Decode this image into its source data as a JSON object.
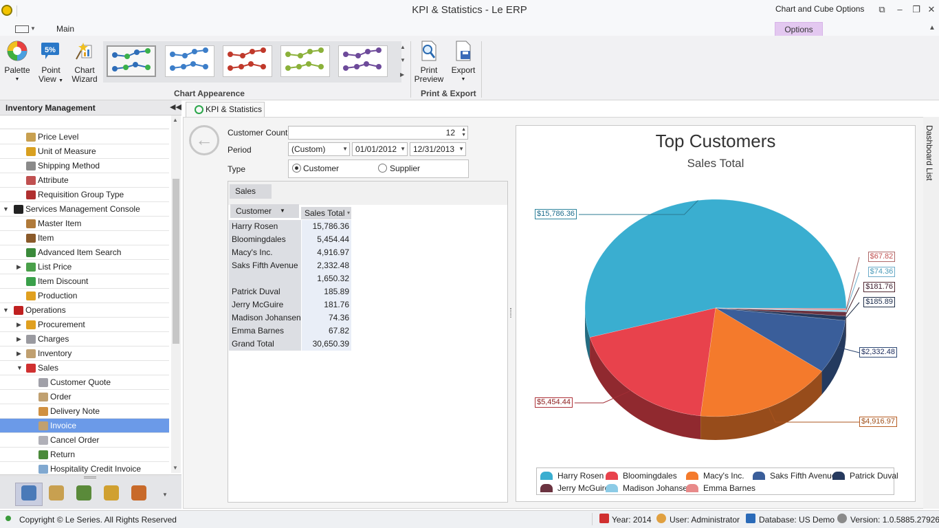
{
  "window": {
    "title": "KPI & Statistics - Le ERP",
    "context_title": "Chart and Cube Options"
  },
  "ribbon": {
    "tabs": [
      "Main",
      "Options"
    ],
    "buttons": {
      "palette": "Palette",
      "point_view_1": "Point",
      "point_view_2": "View",
      "chart_wizard_1": "Chart",
      "chart_wizard_2": "Wizard",
      "print_preview_1": "Print",
      "print_preview_2": "Preview",
      "export": "Export"
    },
    "groups": {
      "appearance": "Chart Appearence",
      "print_export": "Print & Export"
    },
    "gallery_colors": [
      "#2e6db8",
      "#3c7ec9",
      "#c0392b",
      "#8bb13a",
      "#6d4a9a"
    ]
  },
  "left_panel": {
    "title": "Inventory Management",
    "items": [
      {
        "label": "Price Level",
        "level": 2,
        "icon": "price-level-icon",
        "color": "#c8a050"
      },
      {
        "label": "Unit of Measure",
        "level": 2,
        "icon": "unit-measure-icon",
        "color": "#d9a020"
      },
      {
        "label": "Shipping Method",
        "level": 2,
        "icon": "shipping-icon",
        "color": "#8a8a8a"
      },
      {
        "label": "Attribute",
        "level": 2,
        "icon": "attribute-icon",
        "color": "#c05050"
      },
      {
        "label": "Requisition Group Type",
        "level": 2,
        "icon": "requisition-icon",
        "color": "#b03030"
      },
      {
        "label": "Services Management Console",
        "level": 1,
        "icon": "console-icon",
        "color": "#222222",
        "arrow": "expanded"
      },
      {
        "label": "Master Item",
        "level": 2,
        "icon": "master-item-icon",
        "color": "#b07a3a"
      },
      {
        "label": "Item",
        "level": 2,
        "icon": "item-icon",
        "color": "#8a5a2a"
      },
      {
        "label": "Advanced Item Search",
        "level": 2,
        "icon": "item-search-icon",
        "color": "#3a8a3a"
      },
      {
        "label": "List Price",
        "level": 2,
        "icon": "list-price-icon",
        "color": "#4aa04a",
        "arrow": "collapsed"
      },
      {
        "label": "Item Discount",
        "level": 2,
        "icon": "discount-icon",
        "color": "#3aa04a"
      },
      {
        "label": "Production",
        "level": 2,
        "icon": "production-icon",
        "color": "#e0a020"
      },
      {
        "label": "Operations",
        "level": 1,
        "icon": "operations-icon",
        "color": "#c02020",
        "arrow": "expanded"
      },
      {
        "label": "Procurement",
        "level": 2,
        "icon": "procurement-icon",
        "color": "#e0a020",
        "arrow": "collapsed"
      },
      {
        "label": "Charges",
        "level": 2,
        "icon": "charges-icon",
        "color": "#9a9aa0",
        "arrow": "collapsed"
      },
      {
        "label": "Inventory",
        "level": 2,
        "icon": "inventory-icon",
        "color": "#c0a070",
        "arrow": "collapsed"
      },
      {
        "label": "Sales",
        "level": 2,
        "icon": "sales-icon",
        "color": "#d03030",
        "arrow": "expanded"
      },
      {
        "label": "Customer Quote",
        "level": 3,
        "icon": "quote-icon",
        "color": "#a0a0a8"
      },
      {
        "label": "Order",
        "level": 3,
        "icon": "order-icon",
        "color": "#c0a070"
      },
      {
        "label": "Delivery Note",
        "level": 3,
        "icon": "delivery-icon",
        "color": "#d09040"
      },
      {
        "label": "Invoice",
        "level": 3,
        "icon": "invoice-icon",
        "color": "#c0a070",
        "selected": true
      },
      {
        "label": "Cancel Order",
        "level": 3,
        "icon": "cancel-order-icon",
        "color": "#b0b0b8"
      },
      {
        "label": "Return",
        "level": 3,
        "icon": "return-icon",
        "color": "#4a8a3a"
      },
      {
        "label": "Hospitality Credit Invoice",
        "level": 3,
        "icon": "credit-invoice-icon",
        "color": "#80a8d0"
      }
    ],
    "bottom_icons": [
      "inventory-module-icon",
      "finance-module-icon",
      "money-module-icon",
      "people-module-icon",
      "settings-module-icon"
    ]
  },
  "document_tab": "KPI & Statistics",
  "filters": {
    "customer_count_label": "Customer Count",
    "customer_count": "12",
    "period_label": "Period",
    "period_value": "(Custom)",
    "date_from": "01/01/2012",
    "date_to": "12/31/2013",
    "type_label": "Type",
    "type_customer": "Customer",
    "type_supplier": "Supplier"
  },
  "pivot": {
    "data_field": "Sales",
    "row_field": "Customer",
    "col_header": "Sales Total",
    "rows": [
      {
        "name": "Harry Rosen",
        "value": "15,786.36"
      },
      {
        "name": "Bloomingdales",
        "value": "5,454.44"
      },
      {
        "name": "Macy's Inc.",
        "value": "4,916.97"
      },
      {
        "name": "Saks Fifth Avenue",
        "value": "2,332.48"
      },
      {
        "name": "",
        "value": "1,650.32"
      },
      {
        "name": "Patrick Duval",
        "value": "185.89"
      },
      {
        "name": "Jerry McGuire",
        "value": "181.76"
      },
      {
        "name": "Madison Johansen",
        "value": "74.36"
      },
      {
        "name": "Emma Barnes",
        "value": "67.82"
      },
      {
        "name": "Grand Total",
        "value": "30,650.39"
      }
    ]
  },
  "chart_data": {
    "type": "pie",
    "title": "Top Customers",
    "subtitle": "Sales Total",
    "labels": [
      "Harry Rosen",
      "Bloomingdales",
      "Macy's Inc.",
      "Saks Fifth Avenue",
      "Patrick Duval",
      "Jerry McGuire",
      "Madison Johansen",
      "Emma Barnes"
    ],
    "values": [
      15786.36,
      5454.44,
      4916.97,
      2332.48,
      185.89,
      181.76,
      74.36,
      67.82
    ],
    "data_labels": [
      "$15,786.36",
      "$5,454.44",
      "$4,916.97",
      "$2,332.48",
      "$185.89",
      "$181.76",
      "$74.36",
      "$67.82"
    ],
    "colors": [
      "#3aaed0",
      "#e8424c",
      "#f47a2c",
      "#3a5e9a",
      "#263a5e",
      "#6b3340",
      "#8ccbe6",
      "#e88a8a"
    ],
    "legend_position": "bottom"
  },
  "side_tab": "Dashboard List",
  "status": {
    "copyright": "Copyright © Le Series. All Rights Reserved",
    "year": "Year: 2014",
    "user": "User: Administrator",
    "database": "Database: US Demo",
    "version": "Version: 1.0.5885.27926"
  }
}
